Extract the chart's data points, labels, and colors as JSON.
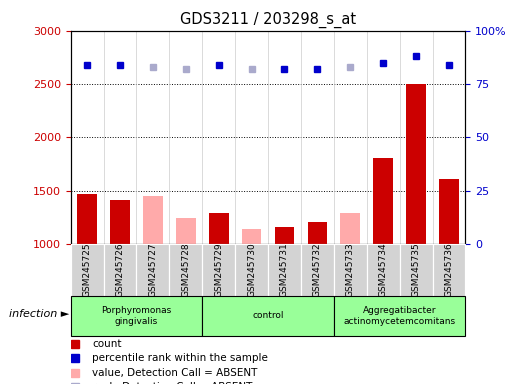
{
  "title": "GDS3211 / 203298_s_at",
  "samples": [
    "GSM245725",
    "GSM245726",
    "GSM245727",
    "GSM245728",
    "GSM245729",
    "GSM245730",
    "GSM245731",
    "GSM245732",
    "GSM245733",
    "GSM245734",
    "GSM245735",
    "GSM245736"
  ],
  "count_values": [
    1465,
    1415,
    null,
    null,
    1285,
    null,
    1155,
    1205,
    null,
    1810,
    2500,
    1605
  ],
  "absent_values": [
    null,
    null,
    1445,
    1245,
    null,
    1135,
    null,
    null,
    1285,
    null,
    null,
    null
  ],
  "percentile_present": [
    84.0,
    84.0,
    null,
    null,
    84.0,
    null,
    82.0,
    82.0,
    null,
    85.0,
    88.0,
    84.0
  ],
  "percentile_absent": [
    null,
    null,
    83.0,
    82.0,
    null,
    82.0,
    null,
    null,
    83.0,
    null,
    null,
    null
  ],
  "group_labels": [
    "Porphyromonas\ngingivalis",
    "control",
    "Aggregatibacter\nactinomycetemcomitans"
  ],
  "group_ranges": [
    [
      0,
      4
    ],
    [
      4,
      8
    ],
    [
      8,
      12
    ]
  ],
  "group_color": "#99ff99",
  "sample_box_color": "#d3d3d3",
  "ylim_left": [
    1000,
    3000
  ],
  "ylim_right": [
    0,
    100
  ],
  "yticks_left": [
    1000,
    1500,
    2000,
    2500,
    3000
  ],
  "yticks_right": [
    0,
    25,
    50,
    75,
    100
  ],
  "bar_color_present": "#cc0000",
  "bar_color_absent": "#ffaaaa",
  "dot_color_present": "#0000cc",
  "dot_color_absent": "#aaaacc",
  "plot_bg": "#ffffff",
  "axis_color_left": "#cc0000",
  "axis_color_right": "#0000cc",
  "legend_items": [
    {
      "color": "#cc0000",
      "label": "count"
    },
    {
      "color": "#0000cc",
      "label": "percentile rank within the sample"
    },
    {
      "color": "#ffaaaa",
      "label": "value, Detection Call = ABSENT"
    },
    {
      "color": "#aaaacc",
      "label": "rank, Detection Call = ABSENT"
    }
  ]
}
